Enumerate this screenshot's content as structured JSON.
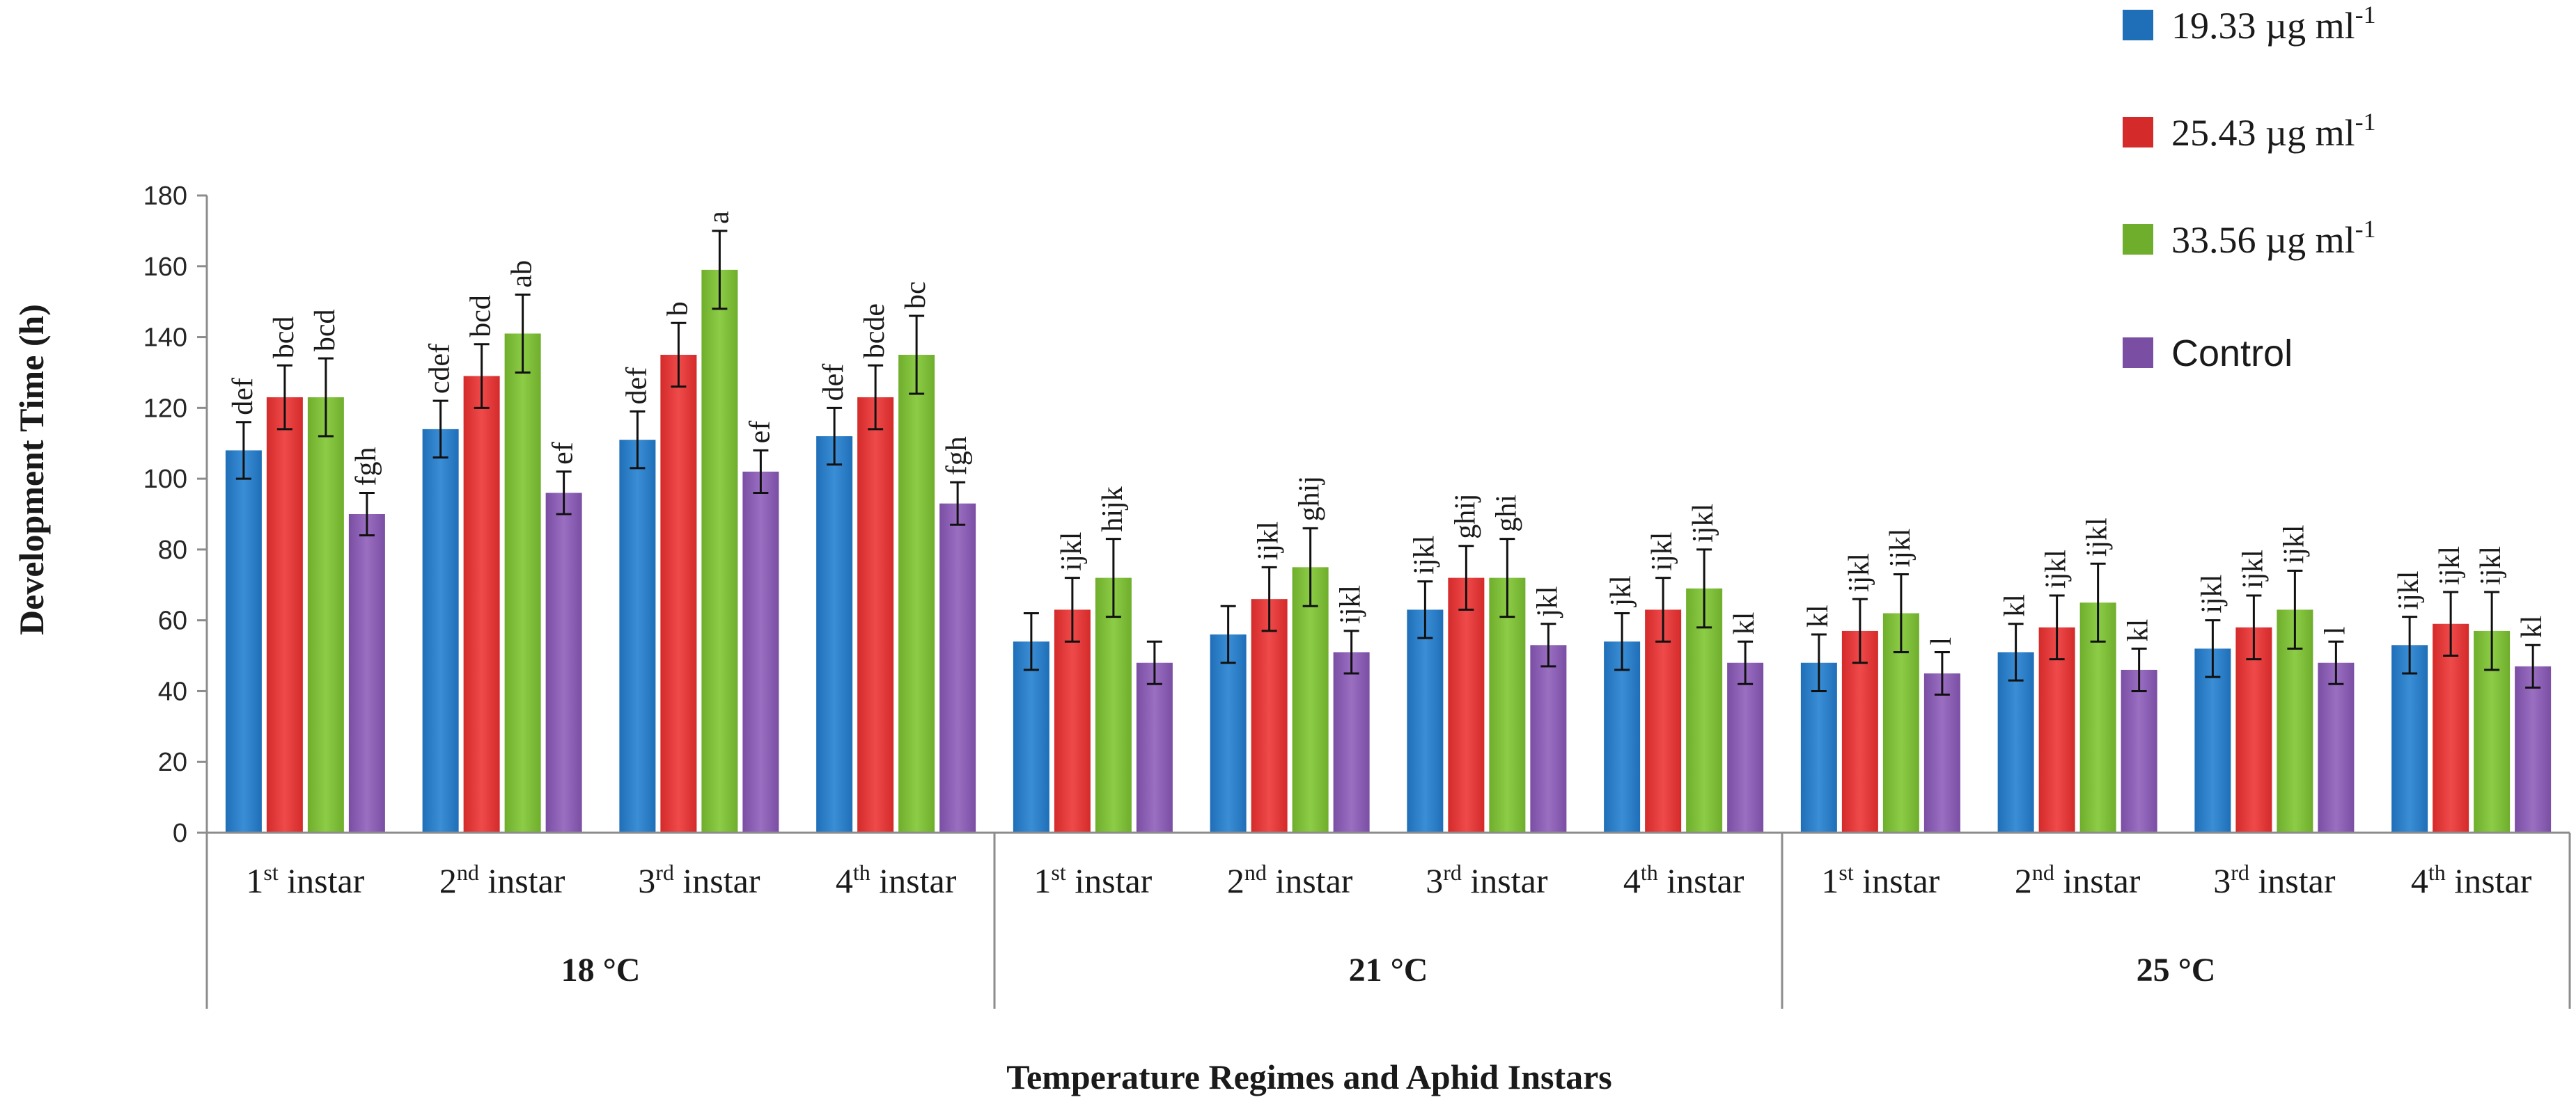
{
  "chart_data": {
    "type": "bar",
    "title": "",
    "ylabel": "Development Time (h)",
    "xlabel": "Temperature Regimes and Aphid Instars",
    "ylim": [
      0,
      180
    ],
    "yticks": [
      0,
      20,
      40,
      60,
      80,
      100,
      120,
      140,
      160,
      180
    ],
    "groups": [
      {
        "label": "18 °C",
        "categories": [
          {
            "ordinal": "1",
            "suffix": "st",
            "word": " instar"
          },
          {
            "ordinal": "2",
            "suffix": "nd",
            "word": " instar"
          },
          {
            "ordinal": "3",
            "suffix": "rd",
            "word": " instar"
          },
          {
            "ordinal": "4",
            "suffix": "th",
            "word": " instar"
          }
        ]
      },
      {
        "label": "21 °C",
        "categories": [
          {
            "ordinal": "1",
            "suffix": "st",
            "word": " instar"
          },
          {
            "ordinal": "2",
            "suffix": "nd",
            "word": " instar"
          },
          {
            "ordinal": "3",
            "suffix": "rd",
            "word": " instar"
          },
          {
            "ordinal": "4",
            "suffix": "th",
            "word": " instar"
          }
        ]
      },
      {
        "label": "25 °C",
        "categories": [
          {
            "ordinal": "1",
            "suffix": "st",
            "word": " instar"
          },
          {
            "ordinal": "2",
            "suffix": "nd",
            "word": " instar"
          },
          {
            "ordinal": "3",
            "suffix": "rd",
            "word": " instar"
          },
          {
            "ordinal": "4",
            "suffix": "th",
            "word": " instar"
          }
        ]
      }
    ],
    "series": [
      {
        "name": "19.33 µg ml",
        "sup": "-1",
        "color": "#1f6fb8",
        "color_light": "#3a8ed6",
        "values": [
          108,
          114,
          111,
          112,
          54,
          56,
          63,
          54,
          48,
          51,
          52,
          53
        ],
        "errors": [
          8,
          8,
          8,
          8,
          8,
          8,
          8,
          8,
          8,
          8,
          8,
          8
        ],
        "letters": [
          "def",
          "cdef",
          "def",
          "def",
          "",
          "",
          "ijkl",
          "jkl",
          "kl",
          "kl",
          "ijkl",
          "ijkl"
        ]
      },
      {
        "name": "25.43 µg ml",
        "sup": "-1",
        "color": "#d42a2a",
        "color_light": "#ef4a4a",
        "values": [
          123,
          129,
          135,
          123,
          63,
          66,
          72,
          63,
          57,
          58,
          58,
          59
        ],
        "errors": [
          9,
          9,
          9,
          9,
          9,
          9,
          9,
          9,
          9,
          9,
          9,
          9
        ],
        "letters": [
          "bcd",
          "bcd",
          "b",
          "bcde",
          "ijkl",
          "ijkl",
          "ghij",
          "ijkl",
          "ijkl",
          "ijkl",
          "ijkl",
          "ijkl"
        ]
      },
      {
        "name": "33.56 µg ml",
        "sup": "-1",
        "color": "#6fae2c",
        "color_light": "#8dcc46",
        "values": [
          123,
          141,
          159,
          135,
          72,
          75,
          72,
          69,
          62,
          65,
          63,
          57
        ],
        "errors": [
          11,
          11,
          11,
          11,
          11,
          11,
          11,
          11,
          11,
          11,
          11,
          11
        ],
        "letters": [
          "bcd",
          "ab",
          "a",
          "bc",
          "hijk",
          "ghij",
          "ghi",
          "ijkl",
          "ijkl",
          "ijkl",
          "ijkl",
          "ijkl"
        ]
      },
      {
        "name": "Control",
        "sup": "",
        "color": "#7a4ea3",
        "color_light": "#9a6fc2",
        "values": [
          90,
          96,
          102,
          93,
          48,
          51,
          53,
          48,
          45,
          46,
          48,
          47
        ],
        "errors": [
          6,
          6,
          6,
          6,
          6,
          6,
          6,
          6,
          6,
          6,
          6,
          6
        ],
        "letters": [
          "fgh",
          "ef",
          "ef",
          "fgh",
          "",
          "ijkl",
          "jkl",
          "kl",
          "l",
          "kl",
          "l",
          "kl"
        ]
      }
    ]
  }
}
